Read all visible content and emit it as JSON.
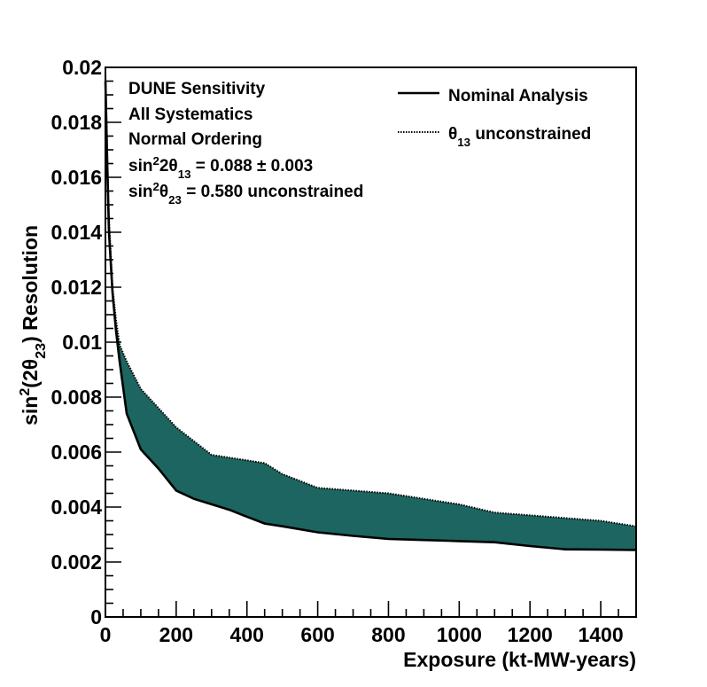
{
  "chart_data": {
    "type": "area",
    "title": "",
    "xlabel": "Exposure (kt-MW-years)",
    "ylabel_parts": [
      "sin",
      "2",
      "(2θ",
      "23",
      ") Resolution"
    ],
    "xlim": [
      0,
      1500
    ],
    "ylim": [
      0,
      0.02
    ],
    "x_ticks": [
      0,
      200,
      400,
      600,
      800,
      1000,
      1200,
      1400
    ],
    "x_tick_labels": [
      "0",
      "200",
      "400",
      "600",
      "800",
      "1000",
      "1200",
      "1400"
    ],
    "y_ticks": [
      0,
      0.002,
      0.004,
      0.006,
      0.008,
      0.01,
      0.012,
      0.014,
      0.016,
      0.018,
      0.02
    ],
    "y_tick_labels": [
      "0",
      "0.002",
      "0.004",
      "0.006",
      "0.008",
      "0.01",
      "0.012",
      "0.014",
      "0.016",
      "0.018",
      "0.02"
    ],
    "grid": false,
    "legend_position": "top-right",
    "fill_color": "#1c6560",
    "annotations": [
      [
        {
          "t": "DUNE Sensitivity"
        }
      ],
      [
        {
          "t": "All Systematics"
        }
      ],
      [
        {
          "t": "Normal Ordering"
        }
      ],
      [
        {
          "t": "sin"
        },
        {
          "t": "2",
          "sup": true
        },
        {
          "t": "2θ"
        },
        {
          "t": "13",
          "sub": true
        },
        {
          "t": " = 0.088 ± 0.003"
        }
      ],
      [
        {
          "t": "sin"
        },
        {
          "t": "2",
          "sup": true
        },
        {
          "t": "θ"
        },
        {
          "t": "23",
          "sub": true
        },
        {
          "t": " = 0.580 unconstrained"
        }
      ]
    ],
    "series": [
      {
        "name": "Nominal Analysis",
        "style": "solid",
        "x": [
          0,
          5,
          10,
          20,
          30,
          40,
          60,
          100,
          150,
          200,
          250,
          300,
          350,
          400,
          450,
          500,
          600,
          700,
          800,
          900,
          1000,
          1100,
          1200,
          1300,
          1400,
          1500
        ],
        "y": [
          0.0195,
          0.0165,
          0.014,
          0.0118,
          0.0104,
          0.0093,
          0.0074,
          0.0061,
          0.0054,
          0.0046,
          0.0043,
          0.0041,
          0.0039,
          0.00365,
          0.0034,
          0.0033,
          0.00308,
          0.00295,
          0.00284,
          0.0028,
          0.00276,
          0.00272,
          0.00258,
          0.00246,
          0.00245,
          0.00244
        ]
      },
      {
        "name_parts": [
          "θ",
          "13",
          " unconstrained"
        ],
        "style": "dotted",
        "x": [
          0,
          5,
          10,
          20,
          30,
          40,
          60,
          100,
          150,
          200,
          250,
          300,
          350,
          400,
          450,
          500,
          600,
          700,
          800,
          900,
          1000,
          1100,
          1200,
          1300,
          1400,
          1500
        ],
        "y": [
          0.0198,
          0.017,
          0.0145,
          0.012,
          0.0108,
          0.0099,
          0.0093,
          0.0083,
          0.0076,
          0.0069,
          0.0064,
          0.0059,
          0.0058,
          0.0057,
          0.0056,
          0.0052,
          0.0047,
          0.0046,
          0.0045,
          0.0043,
          0.0041,
          0.0038,
          0.0037,
          0.0036,
          0.0035,
          0.0033
        ]
      }
    ]
  }
}
